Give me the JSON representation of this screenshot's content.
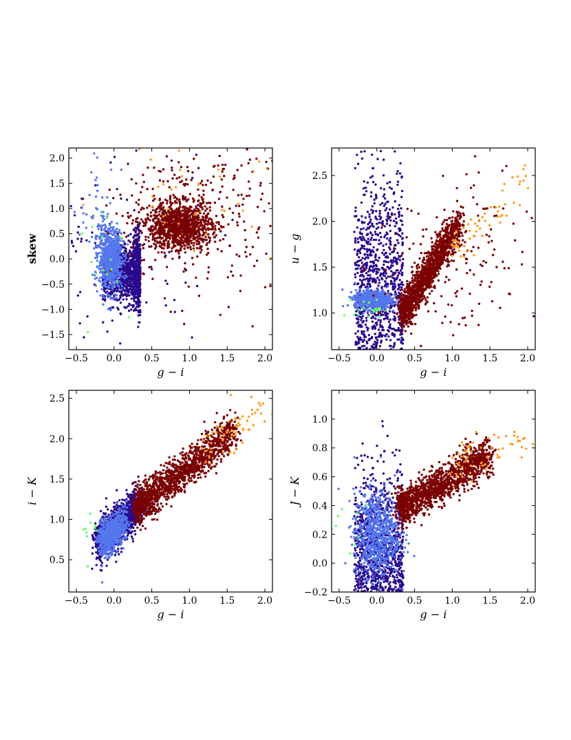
{
  "chart_data": [
    {
      "type": "scatter",
      "title": "",
      "xlabel": "g − i",
      "ylabel": "skew",
      "ylabel_bold": true,
      "xlim": [
        -0.6,
        2.1
      ],
      "ylim": [
        -1.8,
        2.2
      ],
      "xticks": [
        -0.5,
        0.0,
        0.5,
        1.0,
        1.5,
        2.0
      ],
      "xtick_labels": [
        "−0.5",
        "0.0",
        "0.5",
        "1.0",
        "1.5",
        "2.0"
      ],
      "yticks": [
        -1.5,
        -1.0,
        -0.5,
        0.0,
        0.5,
        1.0,
        1.5,
        2.0
      ],
      "ytick_labels": [
        "−1.5",
        "−1.0",
        "−0.5",
        "0.0",
        "0.5",
        "1.0",
        "1.5",
        "2.0"
      ],
      "grid": false,
      "series": [
        {
          "color": "#2a0a8c",
          "count": 1400,
          "clusters": [
            {
              "x": [
                -0.15,
                0.25
              ],
              "y": [
                -0.3,
                0.5
              ],
              "n": 700,
              "shape": "box"
            },
            {
              "x": [
                0.25,
                0.35
              ],
              "y": [
                -0.25,
                0.7
              ],
              "n": 550,
              "shape": "box"
            },
            {
              "x": [
                -0.4,
                0.9
              ],
              "y": [
                0.1,
                1.2
              ],
              "n": 150,
              "shape": "gauss"
            }
          ]
        },
        {
          "color": "#5577ee",
          "count": 800,
          "clusters": [
            {
              "x": [
                -0.05,
                0.08
              ],
              "y": [
                0.0,
                0.3
              ],
              "n": 750,
              "shape": "gauss"
            },
            {
              "x": [
                -0.2,
                0.12
              ],
              "y": [
                0.9,
                0.5
              ],
              "n": 50,
              "shape": "gauss"
            }
          ]
        },
        {
          "color": "#7a0000",
          "count": 1400,
          "clusters": [
            {
              "x": [
                0.85,
                0.22
              ],
              "y": [
                0.65,
                0.22
              ],
              "n": 1050,
              "shape": "gauss"
            },
            {
              "x": [
                1.1,
                0.5
              ],
              "y": [
                0.9,
                0.8
              ],
              "n": 350,
              "shape": "gauss"
            }
          ]
        },
        {
          "color": "#ff9c1a",
          "count": 40,
          "clusters": [
            {
              "x": [
                1.2,
                0.6
              ],
              "y": [
                1.5,
                0.6
              ],
              "n": 40,
              "shape": "gauss"
            }
          ]
        },
        {
          "color": "#66ff66",
          "count": 15,
          "clusters": [
            {
              "x": [
                -0.15,
                0.15
              ],
              "y": [
                0.2,
                0.6
              ],
              "n": 15,
              "shape": "gauss"
            }
          ]
        }
      ]
    },
    {
      "type": "scatter",
      "title": "",
      "xlabel": "g − i",
      "ylabel": "u − g",
      "ylabel_bold": false,
      "xlim": [
        -0.6,
        2.1
      ],
      "ylim": [
        0.6,
        2.8
      ],
      "xticks": [
        -0.5,
        0.0,
        0.5,
        1.0,
        1.5,
        2.0
      ],
      "xtick_labels": [
        "−0.5",
        "0.0",
        "0.5",
        "1.0",
        "1.5",
        "2.0"
      ],
      "yticks": [
        1.0,
        1.5,
        2.0,
        2.5
      ],
      "ytick_labels": [
        "1.0",
        "1.5",
        "2.0",
        "2.5"
      ],
      "grid": false,
      "series": [
        {
          "color": "#2a0a8c",
          "count": 1200,
          "clusters": [
            {
              "x": [
                -0.3,
                0.35
              ],
              "y": [
                1.1,
                1.25
              ],
              "n": 1200,
              "shape": "box"
            }
          ]
        },
        {
          "color": "#5577ee",
          "count": 700,
          "clusters": [
            {
              "x": [
                -0.05,
                0.12
              ],
              "y": [
                1.15,
                0.05
              ],
              "n": 700,
              "shape": "gauss"
            }
          ]
        },
        {
          "color": "#7a0000",
          "count": 1500,
          "clusters": [
            {
              "x": [
                0.35,
                1.1
              ],
              "y": [
                1.0,
                2.0
              ],
              "n": 1350,
              "shape": "track"
            },
            {
              "x": [
                1.0,
                0.5
              ],
              "y": [
                1.5,
                0.5
              ],
              "n": 150,
              "shape": "gauss"
            }
          ]
        },
        {
          "color": "#ff9c1a",
          "count": 60,
          "clusters": [
            {
              "x": [
                1.0,
                2.05
              ],
              "y": [
                1.7,
                2.5
              ],
              "n": 60,
              "shape": "track"
            }
          ]
        },
        {
          "color": "#66ff66",
          "count": 20,
          "clusters": [
            {
              "x": [
                -0.1,
                0.1
              ],
              "y": [
                1.05,
                0.05
              ],
              "n": 20,
              "shape": "gauss"
            }
          ]
        }
      ]
    },
    {
      "type": "scatter",
      "title": "",
      "xlabel": "g − i",
      "ylabel": "i − K",
      "ylabel_bold": false,
      "xlim": [
        -0.6,
        2.1
      ],
      "ylim": [
        0.1,
        2.6
      ],
      "xticks": [
        -0.5,
        0.0,
        0.5,
        1.0,
        1.5,
        2.0
      ],
      "xtick_labels": [
        "−0.5",
        "0.0",
        "0.5",
        "1.0",
        "1.5",
        "2.0"
      ],
      "yticks": [
        0.5,
        1.0,
        1.5,
        2.0,
        2.5
      ],
      "ytick_labels": [
        "0.5",
        "1.0",
        "1.5",
        "2.0",
        "2.5"
      ],
      "grid": false,
      "series": [
        {
          "color": "#2a0a8c",
          "count": 1400,
          "clusters": [
            {
              "x": [
                -0.2,
                0.35
              ],
              "y": [
                0.7,
                1.2
              ],
              "n": 1400,
              "shape": "track"
            }
          ]
        },
        {
          "color": "#5577ee",
          "count": 600,
          "clusters": [
            {
              "x": [
                -0.15,
                0.15
              ],
              "y": [
                0.75,
                0.95
              ],
              "n": 600,
              "shape": "track"
            }
          ]
        },
        {
          "color": "#7a0000",
          "count": 1400,
          "clusters": [
            {
              "x": [
                0.3,
                1.6
              ],
              "y": [
                1.15,
                2.1
              ],
              "n": 1400,
              "shape": "track"
            }
          ]
        },
        {
          "color": "#ff9c1a",
          "count": 60,
          "clusters": [
            {
              "x": [
                1.2,
                2.05
              ],
              "y": [
                1.9,
                2.4
              ],
              "n": 60,
              "shape": "track"
            }
          ]
        },
        {
          "color": "#66ff66",
          "count": 10,
          "clusters": [
            {
              "x": [
                -0.3,
                0.1
              ],
              "y": [
                0.8,
                0.2
              ],
              "n": 10,
              "shape": "gauss"
            }
          ]
        }
      ]
    },
    {
      "type": "scatter",
      "title": "",
      "xlabel": "g − i",
      "ylabel": "J − K",
      "ylabel_bold": false,
      "xlim": [
        -0.6,
        2.1
      ],
      "ylim": [
        -0.2,
        1.2
      ],
      "xticks": [
        -0.5,
        0.0,
        0.5,
        1.0,
        1.5,
        2.0
      ],
      "xtick_labels": [
        "−0.5",
        "0.0",
        "0.5",
        "1.0",
        "1.5",
        "2.0"
      ],
      "yticks": [
        -0.2,
        0.0,
        0.2,
        0.4,
        0.6,
        0.8,
        1.0
      ],
      "ytick_labels": [
        "−0.2",
        "0.0",
        "0.2",
        "0.4",
        "0.6",
        "0.8",
        "1.0"
      ],
      "grid": false,
      "series": [
        {
          "color": "#2a0a8c",
          "count": 1400,
          "clusters": [
            {
              "x": [
                -0.3,
                0.35
              ],
              "y": [
                -0.05,
                0.6
              ],
              "n": 1400,
              "shape": "box"
            }
          ]
        },
        {
          "color": "#5577ee",
          "count": 700,
          "clusters": [
            {
              "x": [
                0.0,
                0.15
              ],
              "y": [
                0.2,
                0.15
              ],
              "n": 700,
              "shape": "gauss"
            }
          ]
        },
        {
          "color": "#7a0000",
          "count": 1400,
          "clusters": [
            {
              "x": [
                0.3,
                1.5
              ],
              "y": [
                0.38,
                0.75
              ],
              "n": 1400,
              "shape": "track"
            }
          ]
        },
        {
          "color": "#ff9c1a",
          "count": 60,
          "clusters": [
            {
              "x": [
                1.0,
                2.05
              ],
              "y": [
                0.7,
                0.85
              ],
              "n": 60,
              "shape": "track"
            }
          ]
        },
        {
          "color": "#66ff66",
          "count": 10,
          "clusters": [
            {
              "x": [
                -0.4,
                0.2
              ],
              "y": [
                0.1,
                0.3
              ],
              "n": 10,
              "shape": "gauss"
            }
          ]
        }
      ]
    }
  ]
}
